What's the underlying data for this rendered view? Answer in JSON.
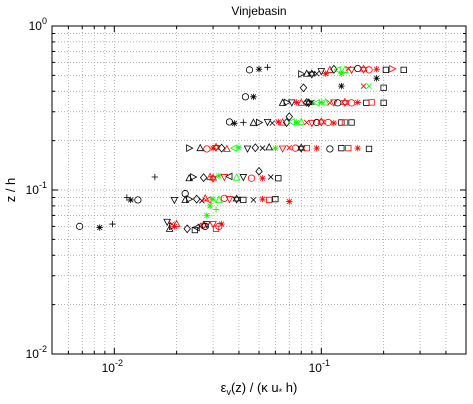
{
  "chart_data": {
    "type": "scatter",
    "title": "Vinjebasin",
    "xlabel": "ε_v(z) / (κ u_* h)",
    "xlabel_parts": {
      "eps": "ε",
      "eps_sub": "v",
      "mid": "(z) / (κ u",
      "u_sub": "*",
      "end": " h)"
    },
    "ylabel": "z / h",
    "x_scale": "log",
    "y_scale": "log",
    "xlim": [
      0.005,
      0.5
    ],
    "ylim": [
      0.01,
      1
    ],
    "grid": true,
    "x_ticks": [
      {
        "value": 0.01,
        "base": "10",
        "exp": "-2"
      },
      {
        "value": 0.1,
        "base": "10",
        "exp": "-1"
      }
    ],
    "y_ticks": [
      {
        "value": 0.01,
        "base": "10",
        "exp": "-2"
      },
      {
        "value": 0.1,
        "base": "10",
        "exp": "-1"
      },
      {
        "value": 1,
        "base": "10",
        "exp": "0"
      }
    ],
    "colors": {
      "black": "#000000",
      "red": "#ff0000",
      "green": "#00ff00"
    },
    "points": [
      {
        "x": 0.0068,
        "y": 0.06,
        "m": "circle",
        "c": "black"
      },
      {
        "x": 0.0085,
        "y": 0.059,
        "m": "star",
        "c": "black"
      },
      {
        "x": 0.0098,
        "y": 0.062,
        "m": "plus",
        "c": "black"
      },
      {
        "x": 0.013,
        "y": 0.087,
        "m": "circle",
        "c": "black"
      },
      {
        "x": 0.012,
        "y": 0.087,
        "m": "star",
        "c": "black"
      },
      {
        "x": 0.0115,
        "y": 0.09,
        "m": "plus",
        "c": "black"
      },
      {
        "x": 0.0157,
        "y": 0.12,
        "m": "plus",
        "c": "black"
      },
      {
        "x": 0.022,
        "y": 0.095,
        "m": "circle",
        "c": "black"
      },
      {
        "x": 0.018,
        "y": 0.064,
        "m": "tri-down",
        "c": "black"
      },
      {
        "x": 0.0185,
        "y": 0.058,
        "m": "triangle",
        "c": "black"
      },
      {
        "x": 0.019,
        "y": 0.06,
        "m": "tri-right",
        "c": "black"
      },
      {
        "x": 0.0195,
        "y": 0.06,
        "m": "star",
        "c": "red"
      },
      {
        "x": 0.019,
        "y": 0.062,
        "m": "x",
        "c": "red"
      },
      {
        "x": 0.02,
        "y": 0.062,
        "m": "triangle",
        "c": "red"
      },
      {
        "x": 0.0225,
        "y": 0.058,
        "m": "diamond",
        "c": "black"
      },
      {
        "x": 0.0245,
        "y": 0.057,
        "m": "square",
        "c": "black"
      },
      {
        "x": 0.025,
        "y": 0.059,
        "m": "tri-left",
        "c": "black"
      },
      {
        "x": 0.026,
        "y": 0.06,
        "m": "x",
        "c": "black"
      },
      {
        "x": 0.027,
        "y": 0.061,
        "m": "hexagram",
        "c": "red"
      },
      {
        "x": 0.0275,
        "y": 0.06,
        "m": "circle",
        "c": "black"
      },
      {
        "x": 0.028,
        "y": 0.062,
        "m": "tri-down",
        "c": "black"
      },
      {
        "x": 0.03,
        "y": 0.062,
        "m": "tri-down",
        "c": "red"
      },
      {
        "x": 0.032,
        "y": 0.06,
        "m": "circle",
        "c": "red"
      },
      {
        "x": 0.033,
        "y": 0.062,
        "m": "star",
        "c": "red"
      },
      {
        "x": 0.031,
        "y": 0.058,
        "m": "square",
        "c": "red"
      },
      {
        "x": 0.028,
        "y": 0.07,
        "m": "star",
        "c": "green"
      },
      {
        "x": 0.029,
        "y": 0.08,
        "m": "star",
        "c": "green"
      },
      {
        "x": 0.031,
        "y": 0.076,
        "m": "plus",
        "c": "green"
      },
      {
        "x": 0.0195,
        "y": 0.087,
        "m": "tri-down",
        "c": "black"
      },
      {
        "x": 0.022,
        "y": 0.087,
        "m": "triangle",
        "c": "black"
      },
      {
        "x": 0.023,
        "y": 0.088,
        "m": "tri-right",
        "c": "black"
      },
      {
        "x": 0.025,
        "y": 0.088,
        "m": "diamond",
        "c": "black"
      },
      {
        "x": 0.0265,
        "y": 0.086,
        "m": "x",
        "c": "black"
      },
      {
        "x": 0.0275,
        "y": 0.089,
        "m": "triangle",
        "c": "red"
      },
      {
        "x": 0.0285,
        "y": 0.087,
        "m": "tri-left",
        "c": "red"
      },
      {
        "x": 0.03,
        "y": 0.088,
        "m": "star",
        "c": "green"
      },
      {
        "x": 0.032,
        "y": 0.087,
        "m": "triangle",
        "c": "green"
      },
      {
        "x": 0.034,
        "y": 0.089,
        "m": "circle",
        "c": "red"
      },
      {
        "x": 0.036,
        "y": 0.088,
        "m": "tri-down",
        "c": "red"
      },
      {
        "x": 0.039,
        "y": 0.088,
        "m": "hexagram",
        "c": "black"
      },
      {
        "x": 0.042,
        "y": 0.087,
        "m": "square",
        "c": "black"
      },
      {
        "x": 0.047,
        "y": 0.087,
        "m": "x",
        "c": "black"
      },
      {
        "x": 0.052,
        "y": 0.088,
        "m": "star",
        "c": "red"
      },
      {
        "x": 0.056,
        "y": 0.087,
        "m": "square",
        "c": "red"
      },
      {
        "x": 0.06,
        "y": 0.088,
        "m": "square",
        "c": "black"
      },
      {
        "x": 0.07,
        "y": 0.085,
        "m": "star",
        "c": "red"
      },
      {
        "x": 0.023,
        "y": 0.118,
        "m": "triangle",
        "c": "black"
      },
      {
        "x": 0.024,
        "y": 0.12,
        "m": "tri-right",
        "c": "black"
      },
      {
        "x": 0.027,
        "y": 0.119,
        "m": "diamond",
        "c": "black"
      },
      {
        "x": 0.029,
        "y": 0.12,
        "m": "triangle",
        "c": "red"
      },
      {
        "x": 0.03,
        "y": 0.118,
        "m": "hexagram",
        "c": "red"
      },
      {
        "x": 0.032,
        "y": 0.122,
        "m": "star",
        "c": "green"
      },
      {
        "x": 0.034,
        "y": 0.12,
        "m": "tri-down",
        "c": "red"
      },
      {
        "x": 0.036,
        "y": 0.121,
        "m": "tri-left",
        "c": "black"
      },
      {
        "x": 0.039,
        "y": 0.119,
        "m": "triangle",
        "c": "green"
      },
      {
        "x": 0.042,
        "y": 0.12,
        "m": "tri-down",
        "c": "black"
      },
      {
        "x": 0.046,
        "y": 0.118,
        "m": "circle",
        "c": "red"
      },
      {
        "x": 0.052,
        "y": 0.118,
        "m": "star",
        "c": "red"
      },
      {
        "x": 0.05,
        "y": 0.13,
        "m": "diamond",
        "c": "black"
      },
      {
        "x": 0.057,
        "y": 0.12,
        "m": "x",
        "c": "black"
      },
      {
        "x": 0.062,
        "y": 0.118,
        "m": "square",
        "c": "black"
      },
      {
        "x": 0.023,
        "y": 0.18,
        "m": "tri-right",
        "c": "black"
      },
      {
        "x": 0.026,
        "y": 0.18,
        "m": "triangle",
        "c": "black"
      },
      {
        "x": 0.028,
        "y": 0.178,
        "m": "circle",
        "c": "red"
      },
      {
        "x": 0.03,
        "y": 0.18,
        "m": "star",
        "c": "red"
      },
      {
        "x": 0.031,
        "y": 0.182,
        "m": "hexagram",
        "c": "red"
      },
      {
        "x": 0.033,
        "y": 0.18,
        "m": "diamond",
        "c": "black"
      },
      {
        "x": 0.035,
        "y": 0.178,
        "m": "triangle",
        "c": "red"
      },
      {
        "x": 0.038,
        "y": 0.18,
        "m": "tri-left",
        "c": "green"
      },
      {
        "x": 0.04,
        "y": 0.181,
        "m": "star",
        "c": "green"
      },
      {
        "x": 0.044,
        "y": 0.179,
        "m": "tri-down",
        "c": "black"
      },
      {
        "x": 0.048,
        "y": 0.181,
        "m": "diamond",
        "c": "black"
      },
      {
        "x": 0.052,
        "y": 0.18,
        "m": "x",
        "c": "black"
      },
      {
        "x": 0.056,
        "y": 0.182,
        "m": "triangle",
        "c": "black"
      },
      {
        "x": 0.06,
        "y": 0.18,
        "m": "star",
        "c": "green"
      },
      {
        "x": 0.065,
        "y": 0.179,
        "m": "tri-down",
        "c": "red"
      },
      {
        "x": 0.07,
        "y": 0.181,
        "m": "x",
        "c": "red"
      },
      {
        "x": 0.075,
        "y": 0.18,
        "m": "circle",
        "c": "red"
      },
      {
        "x": 0.08,
        "y": 0.18,
        "m": "hexagram",
        "c": "black"
      },
      {
        "x": 0.085,
        "y": 0.18,
        "m": "square",
        "c": "red"
      },
      {
        "x": 0.095,
        "y": 0.18,
        "m": "star",
        "c": "red"
      },
      {
        "x": 0.11,
        "y": 0.178,
        "m": "circle",
        "c": "black"
      },
      {
        "x": 0.125,
        "y": 0.18,
        "m": "square",
        "c": "black"
      },
      {
        "x": 0.135,
        "y": 0.18,
        "m": "square",
        "c": "red"
      },
      {
        "x": 0.15,
        "y": 0.18,
        "m": "star",
        "c": "red"
      },
      {
        "x": 0.17,
        "y": 0.178,
        "m": "square",
        "c": "black"
      },
      {
        "x": 0.036,
        "y": 0.26,
        "m": "circle",
        "c": "black"
      },
      {
        "x": 0.038,
        "y": 0.255,
        "m": "star",
        "c": "black"
      },
      {
        "x": 0.042,
        "y": 0.258,
        "m": "plus",
        "c": "black"
      },
      {
        "x": 0.047,
        "y": 0.257,
        "m": "triangle",
        "c": "black"
      },
      {
        "x": 0.05,
        "y": 0.258,
        "m": "tri-right",
        "c": "black"
      },
      {
        "x": 0.055,
        "y": 0.26,
        "m": "tri-down",
        "c": "black"
      },
      {
        "x": 0.058,
        "y": 0.256,
        "m": "x",
        "c": "black"
      },
      {
        "x": 0.062,
        "y": 0.26,
        "m": "star",
        "c": "red"
      },
      {
        "x": 0.065,
        "y": 0.258,
        "m": "triangle",
        "c": "red"
      },
      {
        "x": 0.068,
        "y": 0.258,
        "m": "diamond",
        "c": "black"
      },
      {
        "x": 0.07,
        "y": 0.28,
        "m": "diamond",
        "c": "black"
      },
      {
        "x": 0.072,
        "y": 0.26,
        "m": "tri-left",
        "c": "green"
      },
      {
        "x": 0.076,
        "y": 0.258,
        "m": "star",
        "c": "green"
      },
      {
        "x": 0.08,
        "y": 0.26,
        "m": "triangle",
        "c": "green"
      },
      {
        "x": 0.085,
        "y": 0.258,
        "m": "x",
        "c": "red"
      },
      {
        "x": 0.09,
        "y": 0.256,
        "m": "tri-down",
        "c": "red"
      },
      {
        "x": 0.095,
        "y": 0.258,
        "m": "circle",
        "c": "black"
      },
      {
        "x": 0.1,
        "y": 0.26,
        "m": "hexagram",
        "c": "red"
      },
      {
        "x": 0.108,
        "y": 0.258,
        "m": "circle",
        "c": "red"
      },
      {
        "x": 0.115,
        "y": 0.256,
        "m": "star",
        "c": "red"
      },
      {
        "x": 0.125,
        "y": 0.258,
        "m": "square",
        "c": "black"
      },
      {
        "x": 0.13,
        "y": 0.258,
        "m": "square",
        "c": "red"
      },
      {
        "x": 0.14,
        "y": 0.258,
        "m": "square",
        "c": "black"
      },
      {
        "x": 0.043,
        "y": 0.37,
        "m": "circle",
        "c": "black"
      },
      {
        "x": 0.047,
        "y": 0.37,
        "m": "star",
        "c": "black"
      },
      {
        "x": 0.065,
        "y": 0.34,
        "m": "triangle",
        "c": "black"
      },
      {
        "x": 0.068,
        "y": 0.342,
        "m": "tri-right",
        "c": "black"
      },
      {
        "x": 0.072,
        "y": 0.342,
        "m": "tri-down",
        "c": "black"
      },
      {
        "x": 0.076,
        "y": 0.342,
        "m": "star",
        "c": "red"
      },
      {
        "x": 0.08,
        "y": 0.34,
        "m": "triangle",
        "c": "red"
      },
      {
        "x": 0.085,
        "y": 0.342,
        "m": "diamond",
        "c": "black"
      },
      {
        "x": 0.087,
        "y": 0.34,
        "m": "hexagram",
        "c": "black"
      },
      {
        "x": 0.09,
        "y": 0.342,
        "m": "x",
        "c": "black"
      },
      {
        "x": 0.095,
        "y": 0.34,
        "m": "tri-left",
        "c": "green"
      },
      {
        "x": 0.1,
        "y": 0.342,
        "m": "star",
        "c": "green"
      },
      {
        "x": 0.105,
        "y": 0.342,
        "m": "triangle",
        "c": "green"
      },
      {
        "x": 0.11,
        "y": 0.34,
        "m": "x",
        "c": "red"
      },
      {
        "x": 0.115,
        "y": 0.342,
        "m": "tri-down",
        "c": "red"
      },
      {
        "x": 0.12,
        "y": 0.34,
        "m": "circle",
        "c": "black"
      },
      {
        "x": 0.13,
        "y": 0.342,
        "m": "hexagram",
        "c": "red"
      },
      {
        "x": 0.14,
        "y": 0.34,
        "m": "circle",
        "c": "red"
      },
      {
        "x": 0.15,
        "y": 0.342,
        "m": "star",
        "c": "red"
      },
      {
        "x": 0.165,
        "y": 0.34,
        "m": "square",
        "c": "black"
      },
      {
        "x": 0.175,
        "y": 0.342,
        "m": "square",
        "c": "red"
      },
      {
        "x": 0.2,
        "y": 0.34,
        "m": "square",
        "c": "black"
      },
      {
        "x": 0.082,
        "y": 0.42,
        "m": "diamond",
        "c": "black"
      },
      {
        "x": 0.045,
        "y": 0.54,
        "m": "circle",
        "c": "black"
      },
      {
        "x": 0.05,
        "y": 0.545,
        "m": "star",
        "c": "black"
      },
      {
        "x": 0.055,
        "y": 0.56,
        "m": "plus",
        "c": "black"
      },
      {
        "x": 0.08,
        "y": 0.51,
        "m": "tri-right",
        "c": "black"
      },
      {
        "x": 0.085,
        "y": 0.512,
        "m": "triangle",
        "c": "black"
      },
      {
        "x": 0.09,
        "y": 0.51,
        "m": "hexagram",
        "c": "black"
      },
      {
        "x": 0.095,
        "y": 0.512,
        "m": "x",
        "c": "black"
      },
      {
        "x": 0.1,
        "y": 0.53,
        "m": "tri-down",
        "c": "black"
      },
      {
        "x": 0.105,
        "y": 0.512,
        "m": "star",
        "c": "red"
      },
      {
        "x": 0.11,
        "y": 0.54,
        "m": "triangle",
        "c": "red"
      },
      {
        "x": 0.115,
        "y": 0.545,
        "m": "diamond",
        "c": "black"
      },
      {
        "x": 0.12,
        "y": 0.54,
        "m": "tri-left",
        "c": "green"
      },
      {
        "x": 0.125,
        "y": 0.512,
        "m": "star",
        "c": "green"
      },
      {
        "x": 0.13,
        "y": 0.54,
        "m": "triangle",
        "c": "green"
      },
      {
        "x": 0.135,
        "y": 0.548,
        "m": "x",
        "c": "red"
      },
      {
        "x": 0.14,
        "y": 0.54,
        "m": "tri-down",
        "c": "red"
      },
      {
        "x": 0.15,
        "y": 0.55,
        "m": "circle",
        "c": "black"
      },
      {
        "x": 0.16,
        "y": 0.545,
        "m": "hexagram",
        "c": "red"
      },
      {
        "x": 0.17,
        "y": 0.54,
        "m": "circle",
        "c": "red"
      },
      {
        "x": 0.185,
        "y": 0.545,
        "m": "star",
        "c": "red"
      },
      {
        "x": 0.205,
        "y": 0.54,
        "m": "square",
        "c": "black"
      },
      {
        "x": 0.22,
        "y": 0.548,
        "m": "tri-right",
        "c": "red"
      },
      {
        "x": 0.25,
        "y": 0.54,
        "m": "square",
        "c": "black"
      },
      {
        "x": 0.16,
        "y": 0.43,
        "m": "x",
        "c": "red"
      },
      {
        "x": 0.17,
        "y": 0.43,
        "m": "x",
        "c": "green"
      },
      {
        "x": 0.2,
        "y": 0.42,
        "m": "square",
        "c": "black"
      },
      {
        "x": 0.125,
        "y": 0.43,
        "m": "star",
        "c": "black"
      },
      {
        "x": 0.185,
        "y": 0.48,
        "m": "star",
        "c": "black"
      }
    ]
  }
}
